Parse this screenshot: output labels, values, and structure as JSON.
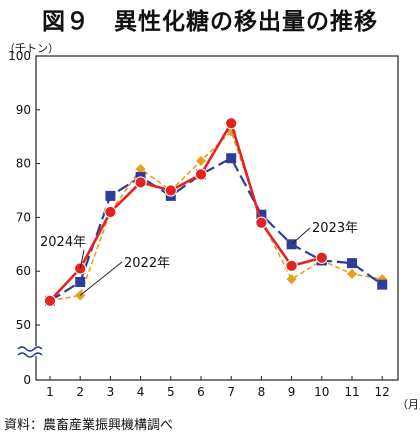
{
  "title": "図９　異性化糖の移出量の推移",
  "y_unit": "（千トン）",
  "x_unit": "（月）",
  "source": "資料：農畜産業振興機構調べ",
  "chart_data": {
    "type": "line",
    "x": [
      "1",
      "2",
      "3",
      "4",
      "5",
      "6",
      "7",
      "8",
      "9",
      "10",
      "11",
      "12"
    ],
    "y_ticks": [
      "0",
      "50",
      "60",
      "70",
      "80",
      "90",
      "100"
    ],
    "ylim": [
      50,
      100
    ],
    "axis_break": true,
    "grid": false,
    "series": [
      {
        "name": "2022年",
        "color": "#e8a020",
        "style": "dashed",
        "marker": "diamond",
        "values": [
          54.5,
          55.5,
          71,
          79,
          75,
          80.5,
          86,
          69.5,
          58.5,
          62,
          59.5,
          58.5
        ]
      },
      {
        "name": "2023年",
        "color": "#2f3d9a",
        "style": "dashed",
        "marker": "square",
        "values": [
          54.5,
          58,
          74,
          77.5,
          74,
          78,
          81,
          70.5,
          65,
          62,
          61.5,
          57.5
        ]
      },
      {
        "name": "2024年",
        "color": "#e32222",
        "style": "solid",
        "marker": "circle",
        "values": [
          54.5,
          60.5,
          71,
          76.5,
          75,
          78,
          87.5,
          69,
          61,
          62.5,
          null,
          null
        ]
      }
    ]
  }
}
